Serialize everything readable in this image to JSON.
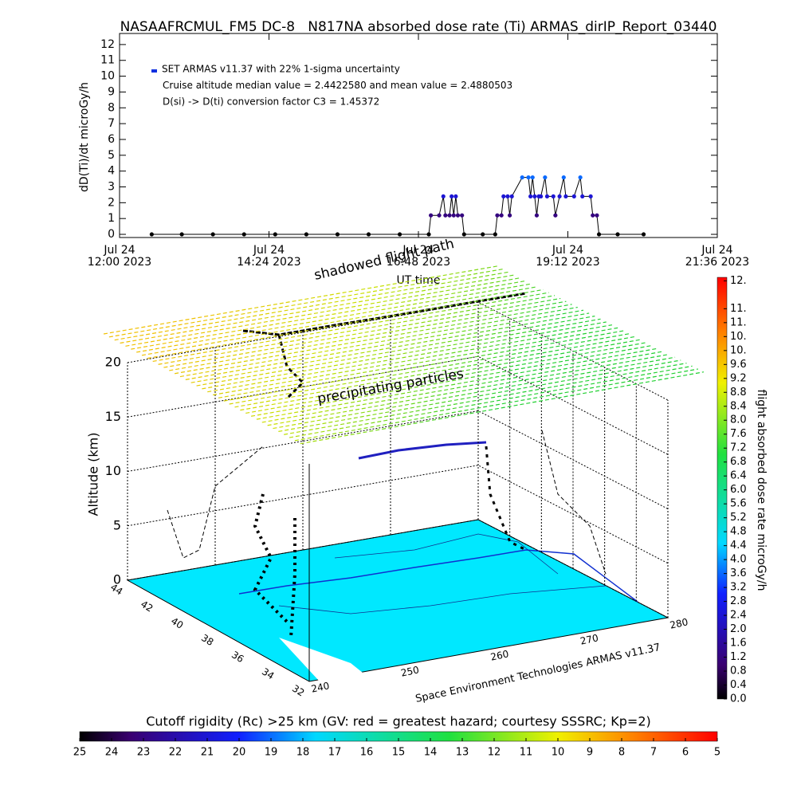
{
  "chart_data": [
    {
      "type": "line",
      "title": "NASAAFRCMUL_FM5 DC-8   N817NA absorbed dose rate (Ti) ARMAS_dirIP_Report_03440",
      "ylabel": "dD(Ti)/dt microGy/h",
      "xlabel": "UT time",
      "legend": [
        "SET ARMAS v11.37 with 22% 1-sigma uncertainty",
        "Cruise altitude median value = 2.4422580 and mean value = 2.4880503",
        "D(si) -> D(ti) conversion factor C3 = 1.45372"
      ],
      "legend_color": "#1030e0",
      "line_color": "#000000",
      "xlim": [
        "2023-07-24T12:00",
        "2023-07-24T21:36"
      ],
      "xticks": [
        {
          "value": "2023-07-24T12:00",
          "label": "Jul 24\n12:00 2023"
        },
        {
          "value": "2023-07-24T14:24",
          "label": "Jul 24\n14:24 2023"
        },
        {
          "value": "2023-07-24T16:48",
          "label": "Jul 24\n16:48 2023"
        },
        {
          "value": "2023-07-24T19:12",
          "label": "Jul 24\n19:12 2023"
        },
        {
          "value": "2023-07-24T21:36",
          "label": "Jul 24\n21:36 2023"
        }
      ],
      "ylim": [
        -0.2,
        12.7
      ],
      "yticks": [
        0,
        1,
        2,
        3,
        4,
        5,
        6,
        7,
        8,
        9,
        10,
        11,
        12
      ],
      "x": [
        "2023-07-24T12:31",
        "2023-07-24T13:00",
        "2023-07-24T13:30",
        "2023-07-24T14:00",
        "2023-07-24T14:30",
        "2023-07-24T15:00",
        "2023-07-24T15:30",
        "2023-07-24T16:00",
        "2023-07-24T16:30",
        "2023-07-24T16:58",
        "2023-07-24T17:00",
        "2023-07-24T17:08",
        "2023-07-24T17:12",
        "2023-07-24T17:14",
        "2023-07-24T17:18",
        "2023-07-24T17:20",
        "2023-07-24T17:22",
        "2023-07-24T17:24",
        "2023-07-24T17:26",
        "2023-07-24T17:30",
        "2023-07-24T17:32",
        "2023-07-24T17:50",
        "2023-07-24T18:02",
        "2023-07-24T18:04",
        "2023-07-24T18:08",
        "2023-07-24T18:10",
        "2023-07-24T18:14",
        "2023-07-24T18:16",
        "2023-07-24T18:18",
        "2023-07-24T18:28",
        "2023-07-24T18:34",
        "2023-07-24T18:36",
        "2023-07-24T18:38",
        "2023-07-24T18:40",
        "2023-07-24T18:42",
        "2023-07-24T18:44",
        "2023-07-24T18:46",
        "2023-07-24T18:50",
        "2023-07-24T18:52",
        "2023-07-24T18:58",
        "2023-07-24T19:00",
        "2023-07-24T19:04",
        "2023-07-24T19:08",
        "2023-07-24T19:10",
        "2023-07-24T19:18",
        "2023-07-24T19:24",
        "2023-07-24T19:26",
        "2023-07-24T19:34",
        "2023-07-24T19:36",
        "2023-07-24T19:40",
        "2023-07-24T19:42",
        "2023-07-24T20:00",
        "2023-07-24T20:25"
      ],
      "series": [
        {
          "name": "SET ARMAS v11.37",
          "values": [
            0,
            0,
            0,
            0,
            0,
            0,
            0,
            0,
            0,
            0,
            1.2,
            1.2,
            2.4,
            1.2,
            1.2,
            2.4,
            1.2,
            2.4,
            1.2,
            1.2,
            0,
            0,
            0,
            1.2,
            1.2,
            2.4,
            2.4,
            1.2,
            2.4,
            3.6,
            3.6,
            2.4,
            3.6,
            2.4,
            1.2,
            2.4,
            2.4,
            3.6,
            2.4,
            2.4,
            1.2,
            2.4,
            3.6,
            2.4,
            2.4,
            3.6,
            2.4,
            2.4,
            1.2,
            1.2,
            0,
            0,
            0
          ]
        }
      ]
    },
    {
      "type": "perspective3d",
      "zlabel": "Altitude (km)",
      "zlim": [
        0,
        20
      ],
      "zticks": [
        0,
        5,
        10,
        15,
        20
      ],
      "xlim": [
        240,
        280
      ],
      "xticks": [
        240,
        250,
        260,
        270,
        280
      ],
      "ylim": [
        32,
        44
      ],
      "yticks": [
        44,
        42,
        40,
        38,
        36,
        34,
        32
      ],
      "annotations": [
        "shadowed flight path",
        "precipitating particles"
      ],
      "footer": "Space Environment Technologies ARMAS v11.37",
      "floor_color": "#00e8ff"
    },
    {
      "type": "colorbar",
      "orientation": "vertical",
      "label": "flight absorbed dose rate microGy/h",
      "ylim": [
        0,
        12.1
      ],
      "yticks": [
        {
          "value": 0,
          "label": "0.0"
        },
        0.4,
        0.8,
        1.2,
        1.6,
        {
          "value": 2,
          "label": "2.0"
        },
        2.4,
        2.8,
        3.2,
        3.6,
        {
          "value": 4,
          "label": "4.0"
        },
        4.4,
        4.8,
        5.2,
        5.6,
        {
          "value": 6,
          "label": "6.0"
        },
        6.4,
        6.8,
        7.2,
        7.6,
        {
          "value": 8,
          "label": "8.0"
        },
        8.4,
        8.8,
        9.2,
        9.6,
        {
          "value": 10,
          "label": "10."
        },
        {
          "value": 10.4,
          "label": "10."
        },
        {
          "value": 10.8,
          "label": "11."
        },
        {
          "value": 11.2,
          "label": "11."
        },
        {
          "value": 12,
          "label": "12."
        }
      ]
    },
    {
      "type": "colorbar",
      "orientation": "horizontal",
      "label": "Cutoff rigidity (Rc) >25 km (GV: red = greatest hazard; courtesy SSSRC; Kp=2)",
      "xlim": [
        25,
        5
      ],
      "xticks": [
        25,
        24,
        23,
        22,
        21,
        20,
        19,
        18,
        17,
        16,
        15,
        14,
        13,
        12,
        11,
        10,
        9,
        8,
        7,
        6,
        5
      ]
    }
  ]
}
